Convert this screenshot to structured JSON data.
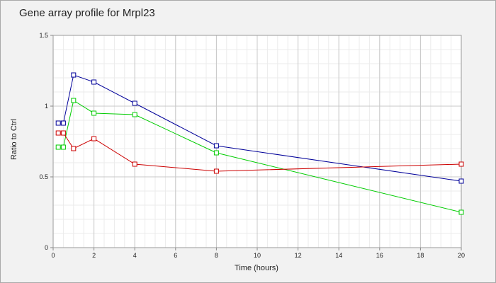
{
  "chart_data": {
    "type": "line",
    "title": "Gene array profile for Mrpl23",
    "xlabel": "Time (hours)",
    "ylabel": "Ratio to Ctrl",
    "xlim": [
      0,
      20
    ],
    "ylim": [
      0,
      1.5
    ],
    "x_ticks": [
      "0",
      "2",
      "4",
      "6",
      "8",
      "10",
      "12",
      "14",
      "16",
      "18",
      "20"
    ],
    "y_ticks": [
      "0",
      "0.5",
      "1",
      "1.5"
    ],
    "grid": true,
    "legend": "none",
    "series": [
      {
        "color": "#000099",
        "marker": "square",
        "x": [
          0.25,
          0.5,
          1,
          2,
          4,
          8,
          20
        ],
        "y": [
          0.88,
          0.88,
          1.22,
          1.17,
          1.02,
          0.72,
          0.47
        ]
      },
      {
        "color": "#00cc00",
        "marker": "square",
        "x": [
          0.25,
          0.5,
          1,
          2,
          4,
          8,
          20
        ],
        "y": [
          0.71,
          0.71,
          1.04,
          0.95,
          0.94,
          0.67,
          0.25
        ]
      },
      {
        "color": "#cc0000",
        "marker": "square",
        "x": [
          0.25,
          0.5,
          1,
          2,
          4,
          8,
          20
        ],
        "y": [
          0.81,
          0.81,
          0.7,
          0.77,
          0.59,
          0.54,
          0.59
        ]
      }
    ]
  }
}
